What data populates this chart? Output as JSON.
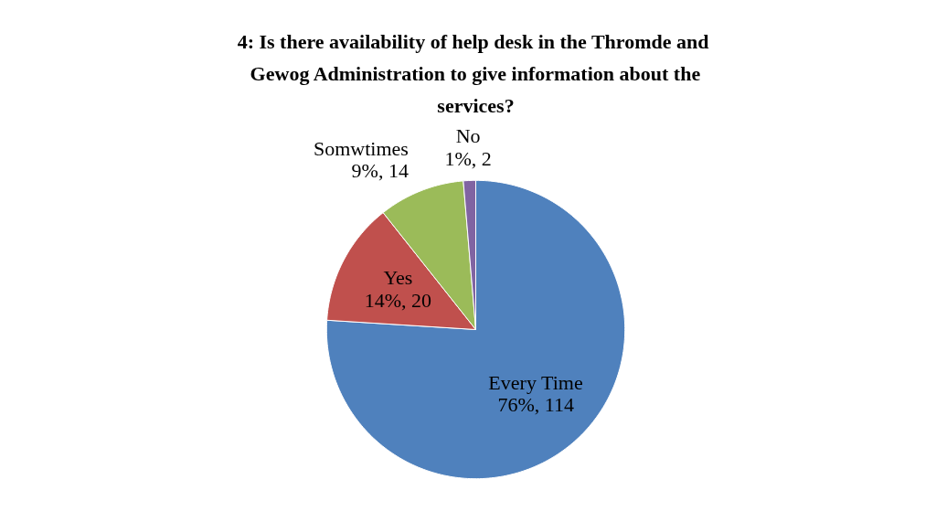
{
  "chart_data": {
    "type": "pie",
    "title": "4:  Is there availability of help desk in the Thromde and Gewog Administration to give information about the services?",
    "categories": [
      "Every Time",
      "Yes",
      "Somwtimes",
      "No"
    ],
    "values": [
      114,
      20,
      14,
      2
    ],
    "value_labels": [
      "76%, 114",
      "14%, 20",
      "9%, 14",
      "1%, 2"
    ],
    "colors": [
      "#4f81bd",
      "#c0504d",
      "#9bbb59",
      "#8064a2"
    ]
  }
}
